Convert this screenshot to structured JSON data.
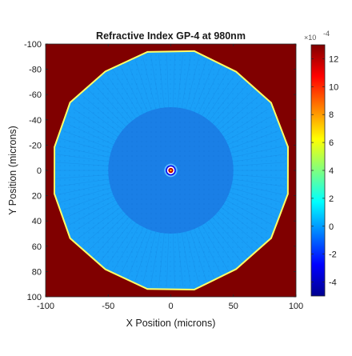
{
  "chart_data": {
    "type": "heatmap",
    "title": "Refractive Index GP-4 at 980nm",
    "xlabel": "X Position (microns)",
    "ylabel": "Y Position (microns)",
    "xlim": [
      -100,
      100
    ],
    "ylim": [
      -100,
      100
    ],
    "y_reversed": true,
    "x_ticks": [
      "-100",
      "-50",
      "0",
      "50",
      "100"
    ],
    "x_tick_values": [
      -100,
      -50,
      0,
      50,
      100
    ],
    "y_ticks": [
      "-100",
      "-80",
      "-60",
      "-40",
      "-20",
      "0",
      "20",
      "40",
      "60",
      "80",
      "100"
    ],
    "y_tick_values": [
      -100,
      -80,
      -60,
      -40,
      -20,
      0,
      20,
      40,
      60,
      80,
      100
    ],
    "colorbar": {
      "range": [
        -5,
        13
      ],
      "multiplier": "×10",
      "exponent": "-4",
      "ticks": [
        "12",
        "10",
        "8",
        "6",
        "4",
        "2",
        "0",
        "-2",
        "-4"
      ],
      "tick_values": [
        12,
        10,
        8,
        6,
        4,
        2,
        0,
        -2,
        -4
      ],
      "colormap": "jet"
    },
    "regions": [
      {
        "name": "outside",
        "value": 13
      },
      {
        "name": "cladding",
        "shape": "polygon",
        "approx_radius": 96,
        "value": 1.5
      },
      {
        "name": "inner-cladding",
        "shape": "circle",
        "radius": 50,
        "value": 0.6
      },
      {
        "name": "core-ring",
        "shape": "circle",
        "radius": 4,
        "value": -3
      },
      {
        "name": "core",
        "shape": "circle",
        "radius": 2,
        "value": 12
      }
    ]
  }
}
